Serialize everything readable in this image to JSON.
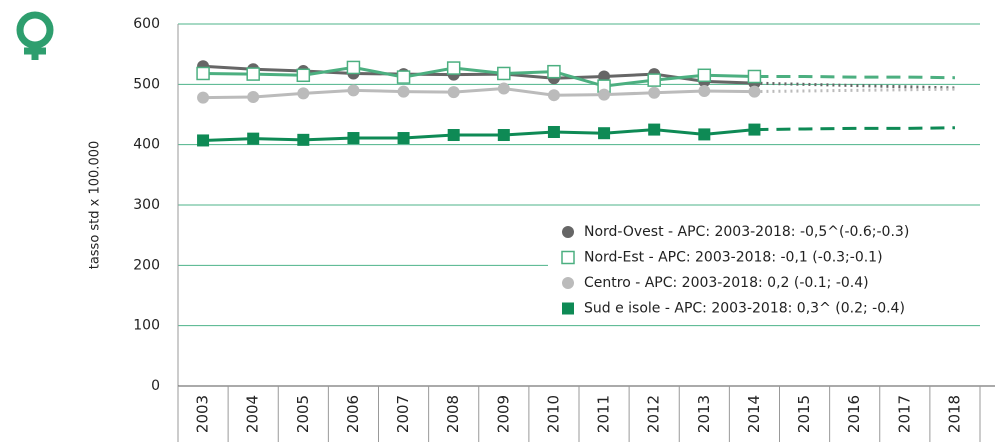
{
  "chart_data": {
    "type": "line",
    "y_label": "tasso std x 100.000",
    "categories": [
      "2003",
      "2004",
      "2005",
      "2006",
      "2007",
      "2008",
      "2009",
      "2010",
      "2011",
      "2012",
      "2013",
      "2014",
      "2015",
      "2016",
      "2017",
      "2018"
    ],
    "ylim": [
      0,
      600
    ],
    "yticks": [
      0,
      100,
      200,
      300,
      400,
      500,
      600
    ],
    "grid": true,
    "grid_color": "#4db38a",
    "category_color": "#2e9e6e",
    "legend": "lower-right",
    "series": [
      {
        "name": "Nord-Ovest - APC: 2003-2018: -0,5^(-0.6;-0.3)",
        "color": "#666666",
        "marker": "circle",
        "forecast_style": "dotted",
        "values": [
          530,
          525,
          522,
          518,
          517,
          516,
          517,
          510,
          513,
          517,
          505,
          502,
          null,
          null,
          null,
          null
        ],
        "forecast": [
          null,
          null,
          null,
          null,
          null,
          null,
          null,
          null,
          null,
          null,
          null,
          502,
          500,
          498,
          496,
          494
        ]
      },
      {
        "name": "Nord-Est - APC: 2003-2018: -0,1 (-0.3;-0.1)",
        "color": "#4caf80",
        "marker": "open-square",
        "forecast_style": "dashed",
        "values": [
          518,
          517,
          515,
          528,
          512,
          527,
          518,
          521,
          497,
          507,
          515,
          513,
          null,
          null,
          null,
          null
        ],
        "forecast": [
          null,
          null,
          null,
          null,
          null,
          null,
          null,
          null,
          null,
          null,
          null,
          513,
          513,
          512,
          512,
          511
        ]
      },
      {
        "name": "Centro - APC: 2003-2018:  0,2 (-0.1; -0.4)",
        "color": "#bbbbbb",
        "marker": "circle",
        "forecast_style": "dotted",
        "values": [
          478,
          479,
          485,
          490,
          488,
          487,
          493,
          482,
          483,
          486,
          489,
          488,
          null,
          null,
          null,
          null
        ],
        "forecast": [
          null,
          null,
          null,
          null,
          null,
          null,
          null,
          null,
          null,
          null,
          null,
          488,
          489,
          490,
          491,
          492
        ]
      },
      {
        "name": "Sud e isole - APC: 2003-2018: 0,3^ (0.2; -0.4)",
        "color": "#0e8a55",
        "marker": "square",
        "forecast_style": "dashed",
        "values": [
          407,
          410,
          408,
          411,
          411,
          416,
          416,
          421,
          419,
          425,
          417,
          425,
          null,
          null,
          null,
          null
        ],
        "forecast": [
          null,
          null,
          null,
          null,
          null,
          null,
          null,
          null,
          null,
          null,
          null,
          425,
          426,
          427,
          427,
          428
        ]
      }
    ]
  }
}
